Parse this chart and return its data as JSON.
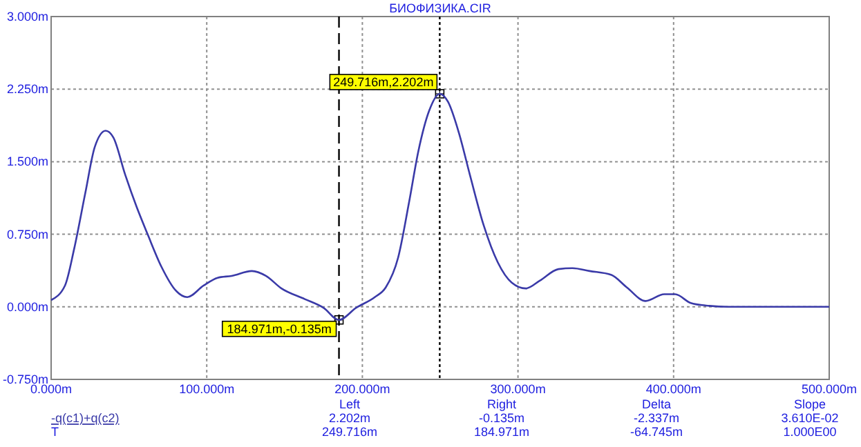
{
  "chart_data": {
    "type": "line",
    "title": "БИОФИЗИКА.CIR",
    "x": [
      0,
      8.9,
      14.8,
      22,
      28,
      35,
      40,
      47.5,
      55,
      62,
      71,
      80,
      87.5,
      98,
      107,
      116,
      129,
      138,
      148,
      163,
      175,
      184.971,
      196,
      208,
      215,
      223,
      230,
      236,
      243,
      249.716,
      255,
      262,
      269,
      278,
      287,
      296,
      305,
      314,
      326,
      335,
      346,
      360,
      370,
      382,
      394,
      401,
      411,
      423,
      435,
      500
    ],
    "series": [
      {
        "name": "-q(c1)+q(c2)",
        "color": "#3a3aa8",
        "values": [
          0.07,
          0.22,
          0.6,
          1.18,
          1.65,
          1.82,
          1.75,
          1.37,
          1.03,
          0.75,
          0.41,
          0.17,
          0.1,
          0.22,
          0.3,
          0.32,
          0.37,
          0.32,
          0.19,
          0.08,
          -0.01,
          -0.135,
          -0.01,
          0.1,
          0.2,
          0.51,
          1.08,
          1.61,
          2.03,
          2.202,
          2.12,
          1.8,
          1.37,
          0.84,
          0.46,
          0.25,
          0.19,
          0.27,
          0.39,
          0.4,
          0.37,
          0.33,
          0.2,
          0.06,
          0.13,
          0.13,
          0.04,
          0.01,
          0,
          0
        ]
      }
    ],
    "xlim": [
      0,
      500
    ],
    "ylim": [
      -0.75,
      3
    ],
    "xticks": [
      {
        "value": 0,
        "label": "0.000m"
      },
      {
        "value": 100,
        "label": "100.000m"
      },
      {
        "value": 200,
        "label": "200.000m"
      },
      {
        "value": 300,
        "label": "300.000m"
      },
      {
        "value": 400,
        "label": "400.000m"
      },
      {
        "value": 500,
        "label": "500.000m"
      }
    ],
    "yticks": [
      {
        "value": -0.75,
        "label": "-0.750m"
      },
      {
        "value": 0,
        "label": "0.000m"
      },
      {
        "value": 0.75,
        "label": "0.750m"
      },
      {
        "value": 1.5,
        "label": "1.500m"
      },
      {
        "value": 2.25,
        "label": "2.250m"
      },
      {
        "value": 3,
        "label": "3.000m"
      }
    ],
    "grid": true,
    "legend": "bottom left",
    "marker": "none",
    "line_style": "solid",
    "ref_lines": [
      {
        "axis": "x",
        "value": 184.971,
        "line_style": "dashed",
        "color": "#000000"
      },
      {
        "axis": "x",
        "value": 249.716,
        "line_style": "dotted",
        "color": "#000000"
      }
    ],
    "annotations": [
      {
        "text": "184.971m,-0.135m",
        "x": 184.971,
        "y": -0.135
      },
      {
        "text": "249.716m,2.202m",
        "x": 249.716,
        "y": 2.202
      },
      "Left",
      "Right",
      "Delta",
      "Slope",
      "2.202m",
      "-0.135m",
      "-2.337m",
      "3.610E-02",
      "249.716m",
      "184.971m",
      "-64.745m",
      "1.000E00",
      "T"
    ]
  }
}
